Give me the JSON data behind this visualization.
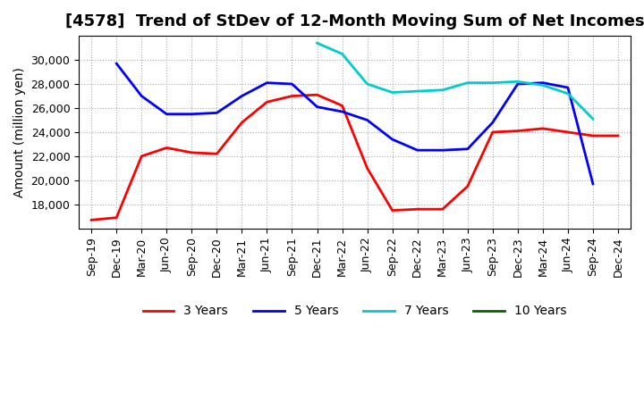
{
  "title": "[4578]  Trend of StDev of 12-Month Moving Sum of Net Incomes",
  "ylabel": "Amount (million yen)",
  "background_color": "#ffffff",
  "plot_bg_color": "#ffffff",
  "grid_color": "#aaaaaa",
  "title_fontsize": 13,
  "label_fontsize": 10,
  "tick_fontsize": 9,
  "xtick_labels": [
    "Sep-19",
    "Dec-19",
    "Mar-20",
    "Jun-20",
    "Sep-20",
    "Dec-20",
    "Mar-21",
    "Jun-21",
    "Sep-21",
    "Dec-21",
    "Mar-22",
    "Jun-22",
    "Sep-22",
    "Dec-22",
    "Mar-23",
    "Jun-23",
    "Sep-23",
    "Dec-23",
    "Mar-24",
    "Jun-24",
    "Sep-24",
    "Dec-24"
  ],
  "series": [
    {
      "name": "3 Years",
      "color": "#ff0000",
      "x_indices": [
        0,
        1,
        2,
        3,
        4,
        5,
        6,
        7,
        8,
        9,
        10,
        11,
        12,
        13,
        14,
        15,
        16,
        17,
        18,
        19,
        20,
        21
      ],
      "values": [
        16700,
        16900,
        22000,
        22700,
        22300,
        22200,
        24800,
        26500,
        27000,
        27100,
        26200,
        21000,
        17500,
        17600,
        17600,
        19500,
        24000,
        24100,
        24300,
        24000,
        23700,
        23700
      ]
    },
    {
      "name": "5 Years",
      "color": "#0000ff",
      "x_indices": [
        1,
        2,
        3,
        4,
        5,
        6,
        7,
        8,
        9,
        10,
        11,
        12,
        13,
        14,
        15,
        16,
        17,
        18,
        19,
        20
      ],
      "values": [
        29700,
        27000,
        25500,
        25500,
        25600,
        27000,
        28100,
        28000,
        26100,
        25700,
        25000,
        23400,
        22500,
        22500,
        22600,
        24800,
        28000,
        28100,
        27700,
        19700
      ]
    },
    {
      "name": "7 Years",
      "color": "#00cccc",
      "x_indices": [
        9,
        10,
        11,
        12,
        13,
        14,
        15,
        16,
        17,
        18,
        19,
        20
      ],
      "values": [
        31400,
        30500,
        28000,
        27300,
        27400,
        27500,
        28100,
        28100,
        28200,
        27900,
        27200,
        25100
      ]
    },
    {
      "name": "10 Years",
      "color": "#006600",
      "x_indices": [],
      "values": []
    }
  ],
  "ylim": [
    16000,
    32000
  ],
  "yticks": [
    18000,
    20000,
    22000,
    24000,
    26000,
    28000,
    30000
  ]
}
